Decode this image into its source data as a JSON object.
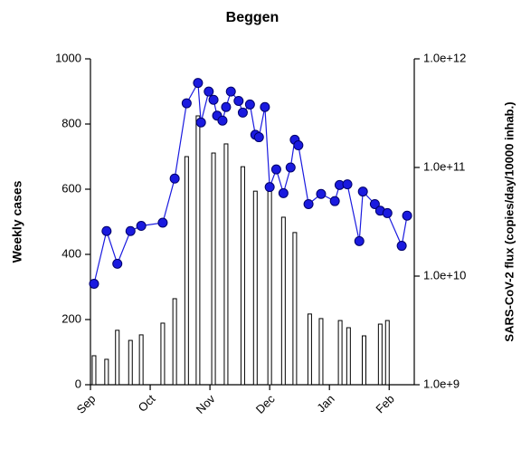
{
  "chart_data": {
    "type": "combo",
    "title": "Beggen",
    "ylabel": "Weekly cases",
    "y2label": "SARS-CoV-2 flux (copies/day/10000 inhab.)",
    "xlim": [
      0,
      5.42
    ],
    "xticks": [
      {
        "value": 0,
        "label": "Sep"
      },
      {
        "value": 1,
        "label": "Oct"
      },
      {
        "value": 2,
        "label": "Nov"
      },
      {
        "value": 3,
        "label": "Dec"
      },
      {
        "value": 4,
        "label": "Jan"
      },
      {
        "value": 5,
        "label": "Feb"
      }
    ],
    "ylim": [
      0,
      1000
    ],
    "yticks": [
      0,
      200,
      400,
      600,
      800,
      1000
    ],
    "y2lim": [
      1000000000,
      1000000000000
    ],
    "y2log": true,
    "y2ticks": [
      {
        "value": 1000000000,
        "label": "1.0e+9"
      },
      {
        "value": 10000000000,
        "label": "1.0e+10"
      },
      {
        "value": 100000000000,
        "label": "1.0e+11"
      },
      {
        "value": 1000000000000,
        "label": "1.0e+12"
      }
    ],
    "series": [
      {
        "type": "bar",
        "color": "#ffffff",
        "x": [
          0.06,
          0.27,
          0.45,
          0.67,
          0.85,
          1.21,
          1.41,
          1.61,
          1.8,
          2.06,
          2.27,
          2.55,
          2.76,
          3.0,
          3.23,
          3.42,
          3.67,
          3.86,
          4.18,
          4.32,
          4.58,
          4.85,
          4.97
        ],
        "values": [
          89,
          78,
          167,
          136,
          153,
          189,
          264,
          700,
          825,
          711,
          739,
          669,
          594,
          606,
          514,
          467,
          217,
          203,
          197,
          175,
          150,
          186,
          197
        ]
      },
      {
        "type": "line",
        "axis": "y2",
        "color": "#1a1adf",
        "x": [
          0.06,
          0.27,
          0.45,
          0.67,
          0.85,
          1.21,
          1.41,
          1.61,
          1.8,
          1.85,
          1.98,
          2.06,
          2.12,
          2.21,
          2.27,
          2.35,
          2.48,
          2.55,
          2.67,
          2.76,
          2.82,
          2.92,
          3.0,
          3.11,
          3.23,
          3.35,
          3.42,
          3.48,
          3.65,
          3.86,
          4.09,
          4.17,
          4.3,
          4.5,
          4.56,
          4.76,
          4.85,
          4.97,
          5.21,
          5.3
        ],
        "values": [
          8500000000,
          26000000000,
          13000000000,
          26000000000,
          29000000000,
          31000000000,
          79000000000,
          390000000000,
          600000000000,
          260000000000,
          500000000000,
          420000000000,
          300000000000,
          270000000000,
          360000000000,
          500000000000,
          410000000000,
          320000000000,
          380000000000,
          200000000000,
          190000000000,
          360000000000,
          66000000000,
          96000000000,
          58000000000,
          100000000000,
          180000000000,
          160000000000,
          46000000000,
          57000000000,
          49000000000,
          69000000000,
          70000000000,
          21000000000,
          60000000000,
          46000000000,
          40000000000,
          38000000000,
          19000000000,
          36000000000
        ]
      }
    ]
  }
}
